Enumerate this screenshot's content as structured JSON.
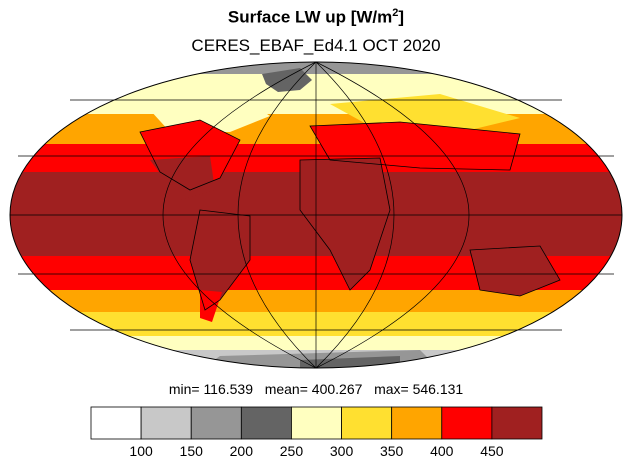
{
  "title": {
    "main_text": "Surface LW up [W/m",
    "main_sup": "2",
    "main_close": "]",
    "subtitle": "CERES_EBAF_Ed4.1 OCT 2020"
  },
  "stats": {
    "min_label": "min=",
    "min_value": "116.539",
    "mean_label": "mean=",
    "mean_value": "400.267",
    "max_label": "max=",
    "max_value": "546.131"
  },
  "colorbar": {
    "colors": [
      "#ffffff",
      "#c8c8c8",
      "#969696",
      "#646464",
      "#ffffc0",
      "#ffe030",
      "#ffa500",
      "#ff0000",
      "#a02020"
    ],
    "tick_labels": [
      "100",
      "150",
      "200",
      "250",
      "300",
      "350",
      "400",
      "450"
    ]
  },
  "map": {
    "projection": "mollweide",
    "colors": {
      "ocean_tropics": "#a02020",
      "red": "#ff0000",
      "orange": "#ffa500",
      "yellow": "#ffe030",
      "pale": "#ffffc0",
      "gray1": "#c8c8c8",
      "gray2": "#969696",
      "gray3": "#646464",
      "coast": "#000000",
      "grid": "#000000"
    }
  }
}
